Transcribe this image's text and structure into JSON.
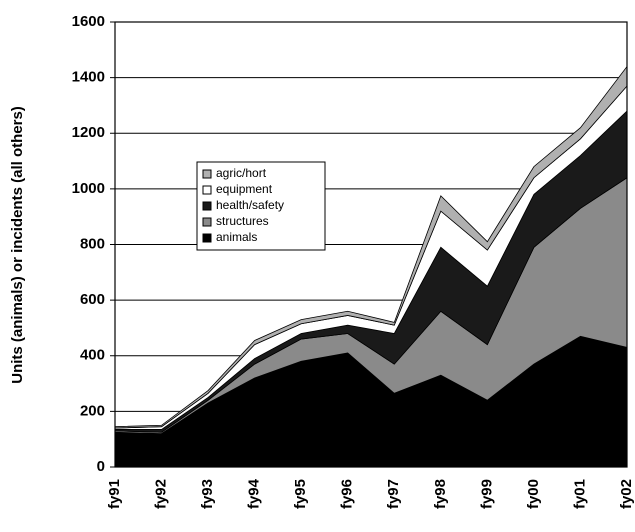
{
  "chart_data": {
    "type": "stacked-area",
    "y_label": "Units (animals) or incidents (all others)",
    "categories": [
      "fy91",
      "fy92",
      "fy93",
      "fy94",
      "fy95",
      "fy96",
      "fy97",
      "fy98",
      "fy99",
      "fy00",
      "fy01",
      "fy02"
    ],
    "series": [
      {
        "name": "animals",
        "color": "#000000",
        "values": [
          125,
          120,
          230,
          320,
          380,
          410,
          265,
          330,
          240,
          370,
          470,
          430
        ]
      },
      {
        "name": "structures",
        "color": "#8a8a8a",
        "values": [
          5,
          5,
          10,
          50,
          80,
          70,
          105,
          230,
          200,
          420,
          460,
          610
        ]
      },
      {
        "name": "health/safety",
        "color": "#1a1a1a",
        "values": [
          5,
          10,
          10,
          20,
          20,
          30,
          110,
          230,
          210,
          190,
          190,
          240
        ]
      },
      {
        "name": "equipment",
        "color": "#ffffff",
        "values": [
          5,
          10,
          15,
          50,
          35,
          35,
          30,
          130,
          130,
          60,
          60,
          90
        ]
      },
      {
        "name": "agric/hort",
        "color": "#b0b0b0",
        "values": [
          5,
          5,
          10,
          15,
          15,
          15,
          10,
          55,
          30,
          40,
          40,
          70
        ]
      }
    ],
    "ylim": [
      0,
      1600
    ],
    "yticks": [
      0,
      200,
      400,
      600,
      800,
      1000,
      1200,
      1400,
      1600
    ],
    "grid": true
  }
}
